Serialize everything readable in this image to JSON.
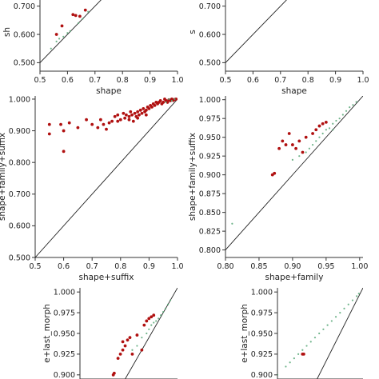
{
  "colors": {
    "red": "#b01010",
    "green": "#58a878",
    "diag": "#222222",
    "axis": "#333333"
  },
  "chart_data": [
    {
      "type": "scatter",
      "xlabel": "shape",
      "ylabel": "sh",
      "xlim": [
        0.5,
        1.0
      ],
      "ylim": [
        0.47,
        0.75
      ],
      "xticks": [
        0.5,
        0.6,
        0.7,
        0.8,
        0.9,
        1.0
      ],
      "xtick_labels": [
        "0.5",
        "0.6",
        "0.7",
        "0.8",
        "0.9",
        "1.0"
      ],
      "yticks": [
        0.5,
        0.6,
        0.7
      ],
      "ytick_labels": [
        "0.500",
        "0.600",
        "0.700"
      ],
      "series": [
        {
          "color": "red",
          "points": [
            [
              0.56,
              0.6
            ],
            [
              0.58,
              0.63
            ],
            [
              0.62,
              0.67
            ],
            [
              0.63,
              0.667
            ],
            [
              0.645,
              0.664
            ],
            [
              0.665,
              0.686
            ]
          ]
        },
        {
          "color": "green",
          "points": [
            [
              0.54,
              0.55
            ],
            [
              0.56,
              0.575
            ],
            [
              0.57,
              0.585
            ],
            [
              0.585,
              0.592
            ],
            [
              0.6,
              0.605
            ],
            [
              0.61,
              0.612
            ],
            [
              0.64,
              0.64
            ],
            [
              0.655,
              0.655
            ],
            [
              0.675,
              0.68
            ]
          ]
        }
      ]
    },
    {
      "type": "scatter",
      "xlabel": "shape",
      "ylabel": "s",
      "xlim": [
        0.5,
        1.0
      ],
      "ylim": [
        0.47,
        0.75
      ],
      "xticks": [
        0.5,
        0.6,
        0.7,
        0.8,
        0.9,
        1.0
      ],
      "xtick_labels": [
        "0.5",
        "0.6",
        "0.7",
        "0.8",
        "0.9",
        "1.0"
      ],
      "yticks": [
        0.5,
        0.6,
        0.7
      ],
      "ytick_labels": [
        "0.500",
        "0.600",
        "0.700"
      ],
      "series": []
    },
    {
      "type": "scatter",
      "xlabel": "shape+suffix",
      "ylabel": "shape+family+suffix",
      "xlim": [
        0.5,
        1.0
      ],
      "ylim": [
        0.5,
        1.01
      ],
      "xticks": [
        0.5,
        0.6,
        0.7,
        0.8,
        0.9,
        1.0
      ],
      "xtick_labels": [
        "0.5",
        "0.6",
        "0.7",
        "0.8",
        "0.9",
        "1.0"
      ],
      "yticks": [
        0.5,
        0.6,
        0.7,
        0.8,
        0.9,
        1.0
      ],
      "ytick_labels": [
        "0.500",
        "0.600",
        "0.700",
        "0.800",
        "0.900",
        "1.000"
      ],
      "series": [
        {
          "color": "red",
          "points": [
            [
              0.55,
              0.92
            ],
            [
              0.55,
              0.89
            ],
            [
              0.59,
              0.92
            ],
            [
              0.6,
              0.9
            ],
            [
              0.6,
              0.835
            ],
            [
              0.62,
              0.925
            ],
            [
              0.65,
              0.91
            ],
            [
              0.68,
              0.935
            ],
            [
              0.7,
              0.92
            ],
            [
              0.72,
              0.91
            ],
            [
              0.74,
              0.92
            ],
            [
              0.75,
              0.905
            ],
            [
              0.76,
              0.925
            ],
            [
              0.77,
              0.93
            ],
            [
              0.78,
              0.945
            ],
            [
              0.79,
              0.95
            ],
            [
              0.8,
              0.935
            ],
            [
              0.81,
              0.955
            ],
            [
              0.815,
              0.94
            ],
            [
              0.82,
              0.95
            ],
            [
              0.83,
              0.945
            ],
            [
              0.835,
              0.96
            ],
            [
              0.84,
              0.95
            ],
            [
              0.845,
              0.93
            ],
            [
              0.85,
              0.955
            ],
            [
              0.855,
              0.945
            ],
            [
              0.86,
              0.96
            ],
            [
              0.865,
              0.95
            ],
            [
              0.87,
              0.965
            ],
            [
              0.875,
              0.955
            ],
            [
              0.88,
              0.97
            ],
            [
              0.885,
              0.96
            ],
            [
              0.89,
              0.965
            ],
            [
              0.895,
              0.975
            ],
            [
              0.9,
              0.97
            ],
            [
              0.905,
              0.98
            ],
            [
              0.91,
              0.975
            ],
            [
              0.915,
              0.985
            ],
            [
              0.92,
              0.98
            ],
            [
              0.925,
              0.99
            ],
            [
              0.93,
              0.985
            ],
            [
              0.935,
              0.99
            ],
            [
              0.94,
              0.995
            ],
            [
              0.945,
              0.985
            ],
            [
              0.95,
              0.99
            ],
            [
              0.955,
              1.0
            ],
            [
              0.96,
              0.995
            ],
            [
              0.965,
              0.99
            ],
            [
              0.97,
              0.998
            ],
            [
              0.975,
              0.995
            ],
            [
              0.98,
              1.0
            ],
            [
              0.985,
              0.996
            ],
            [
              0.99,
              0.999
            ],
            [
              0.995,
              1.0
            ],
            [
              0.73,
              0.935
            ],
            [
              0.79,
              0.93
            ],
            [
              0.83,
              0.935
            ],
            [
              0.86,
              0.94
            ],
            [
              0.89,
              0.95
            ]
          ]
        },
        {
          "color": "green",
          "points": [
            [
              0.96,
              0.99
            ],
            [
              0.98,
              0.995
            ],
            [
              0.99,
              1.0
            ],
            [
              0.97,
              1.0
            ]
          ]
        }
      ]
    },
    {
      "type": "scatter",
      "xlabel": "shape+family",
      "ylabel": "shape+family+suffix",
      "xlim": [
        0.8,
        1.005
      ],
      "ylim": [
        0.79,
        1.005
      ],
      "xticks": [
        0.8,
        0.85,
        0.9,
        0.95,
        1.0
      ],
      "xtick_labels": [
        "0.80",
        "0.85",
        "0.90",
        "0.95",
        "1.00"
      ],
      "yticks": [
        0.8,
        0.825,
        0.85,
        0.875,
        0.9,
        0.925,
        0.95,
        0.975,
        1.0
      ],
      "ytick_labels": [
        "0.800",
        "0.825",
        "0.850",
        "0.875",
        "0.900",
        "0.925",
        "0.950",
        "0.975",
        "1.000"
      ],
      "series": [
        {
          "color": "red",
          "points": [
            [
              0.87,
              0.9
            ],
            [
              0.873,
              0.902
            ],
            [
              0.88,
              0.935
            ],
            [
              0.885,
              0.945
            ],
            [
              0.89,
              0.94
            ],
            [
              0.895,
              0.955
            ],
            [
              0.9,
              0.94
            ],
            [
              0.905,
              0.935
            ],
            [
              0.91,
              0.945
            ],
            [
              0.915,
              0.93
            ],
            [
              0.92,
              0.95
            ],
            [
              0.93,
              0.955
            ],
            [
              0.935,
              0.96
            ],
            [
              0.94,
              0.965
            ],
            [
              0.945,
              0.968
            ],
            [
              0.95,
              0.97
            ]
          ]
        },
        {
          "color": "green",
          "points": [
            [
              0.81,
              0.835
            ],
            [
              0.9,
              0.92
            ],
            [
              0.91,
              0.925
            ],
            [
              0.92,
              0.93
            ],
            [
              0.93,
              0.94
            ],
            [
              0.935,
              0.945
            ],
            [
              0.94,
              0.95
            ],
            [
              0.945,
              0.955
            ],
            [
              0.95,
              0.96
            ],
            [
              0.955,
              0.962
            ],
            [
              0.96,
              0.968
            ],
            [
              0.965,
              0.972
            ],
            [
              0.97,
              0.975
            ],
            [
              0.975,
              0.98
            ],
            [
              0.98,
              0.985
            ],
            [
              0.985,
              0.99
            ],
            [
              0.99,
              0.993
            ],
            [
              0.995,
              0.997
            ],
            [
              0.925,
              0.935
            ],
            [
              0.96,
              0.96
            ]
          ]
        }
      ]
    },
    {
      "type": "scatter",
      "xlabel": "",
      "ylabel": "e+last_morph",
      "xlim": [
        0.8,
        1.005
      ],
      "ylim": [
        0.895,
        1.005
      ],
      "xticks": [],
      "xtick_labels": [],
      "yticks": [
        0.9,
        0.925,
        0.95,
        0.975,
        1.0
      ],
      "ytick_labels": [
        "0.900",
        "0.925",
        "0.950",
        "0.975",
        "1.000"
      ],
      "series": [
        {
          "color": "red",
          "points": [
            [
              0.87,
              0.9
            ],
            [
              0.872,
              0.902
            ],
            [
              0.88,
              0.92
            ],
            [
              0.885,
              0.925
            ],
            [
              0.89,
              0.93
            ],
            [
              0.89,
              0.94
            ],
            [
              0.895,
              0.935
            ],
            [
              0.9,
              0.942
            ],
            [
              0.905,
              0.945
            ],
            [
              0.91,
              0.925
            ],
            [
              0.92,
              0.948
            ],
            [
              0.93,
              0.93
            ],
            [
              0.935,
              0.96
            ],
            [
              0.94,
              0.965
            ],
            [
              0.945,
              0.968
            ],
            [
              0.95,
              0.97
            ],
            [
              0.955,
              0.972
            ]
          ]
        },
        {
          "color": "green",
          "points": [
            [
              0.91,
              0.93
            ],
            [
              0.92,
              0.935
            ],
            [
              0.93,
              0.945
            ],
            [
              0.94,
              0.95
            ],
            [
              0.945,
              0.955
            ],
            [
              0.95,
              0.96
            ],
            [
              0.955,
              0.963
            ],
            [
              0.96,
              0.965
            ],
            [
              0.965,
              0.968
            ],
            [
              0.97,
              0.972
            ],
            [
              0.975,
              0.976
            ],
            [
              0.98,
              0.98
            ],
            [
              0.985,
              0.985
            ],
            [
              0.99,
              0.99
            ]
          ]
        }
      ]
    },
    {
      "type": "scatter",
      "xlabel": "",
      "ylabel": "e+last_morph",
      "xlim": [
        0.8,
        1.005
      ],
      "ylim": [
        0.895,
        1.005
      ],
      "xticks": [],
      "xtick_labels": [],
      "yticks": [
        0.9,
        0.925,
        0.95,
        0.975,
        1.0
      ],
      "ytick_labels": [
        "0.900",
        "0.925",
        "0.950",
        "0.975",
        "1.000"
      ],
      "series": [
        {
          "color": "red",
          "points": [
            [
              0.86,
              0.925
            ],
            [
              0.863,
              0.925
            ]
          ]
        },
        {
          "color": "green",
          "points": [
            [
              0.8,
              0.9
            ],
            [
              0.82,
              0.91
            ],
            [
              0.83,
              0.915
            ],
            [
              0.84,
              0.92
            ],
            [
              0.85,
              0.925
            ],
            [
              0.86,
              0.93
            ],
            [
              0.87,
              0.935
            ],
            [
              0.88,
              0.94
            ],
            [
              0.89,
              0.945
            ],
            [
              0.9,
              0.95
            ],
            [
              0.91,
              0.955
            ],
            [
              0.92,
              0.96
            ],
            [
              0.93,
              0.965
            ],
            [
              0.94,
              0.97
            ],
            [
              0.95,
              0.975
            ],
            [
              0.96,
              0.98
            ],
            [
              0.97,
              0.985
            ],
            [
              0.98,
              0.99
            ],
            [
              0.99,
              0.995
            ],
            [
              0.995,
              0.998
            ]
          ]
        }
      ]
    }
  ]
}
